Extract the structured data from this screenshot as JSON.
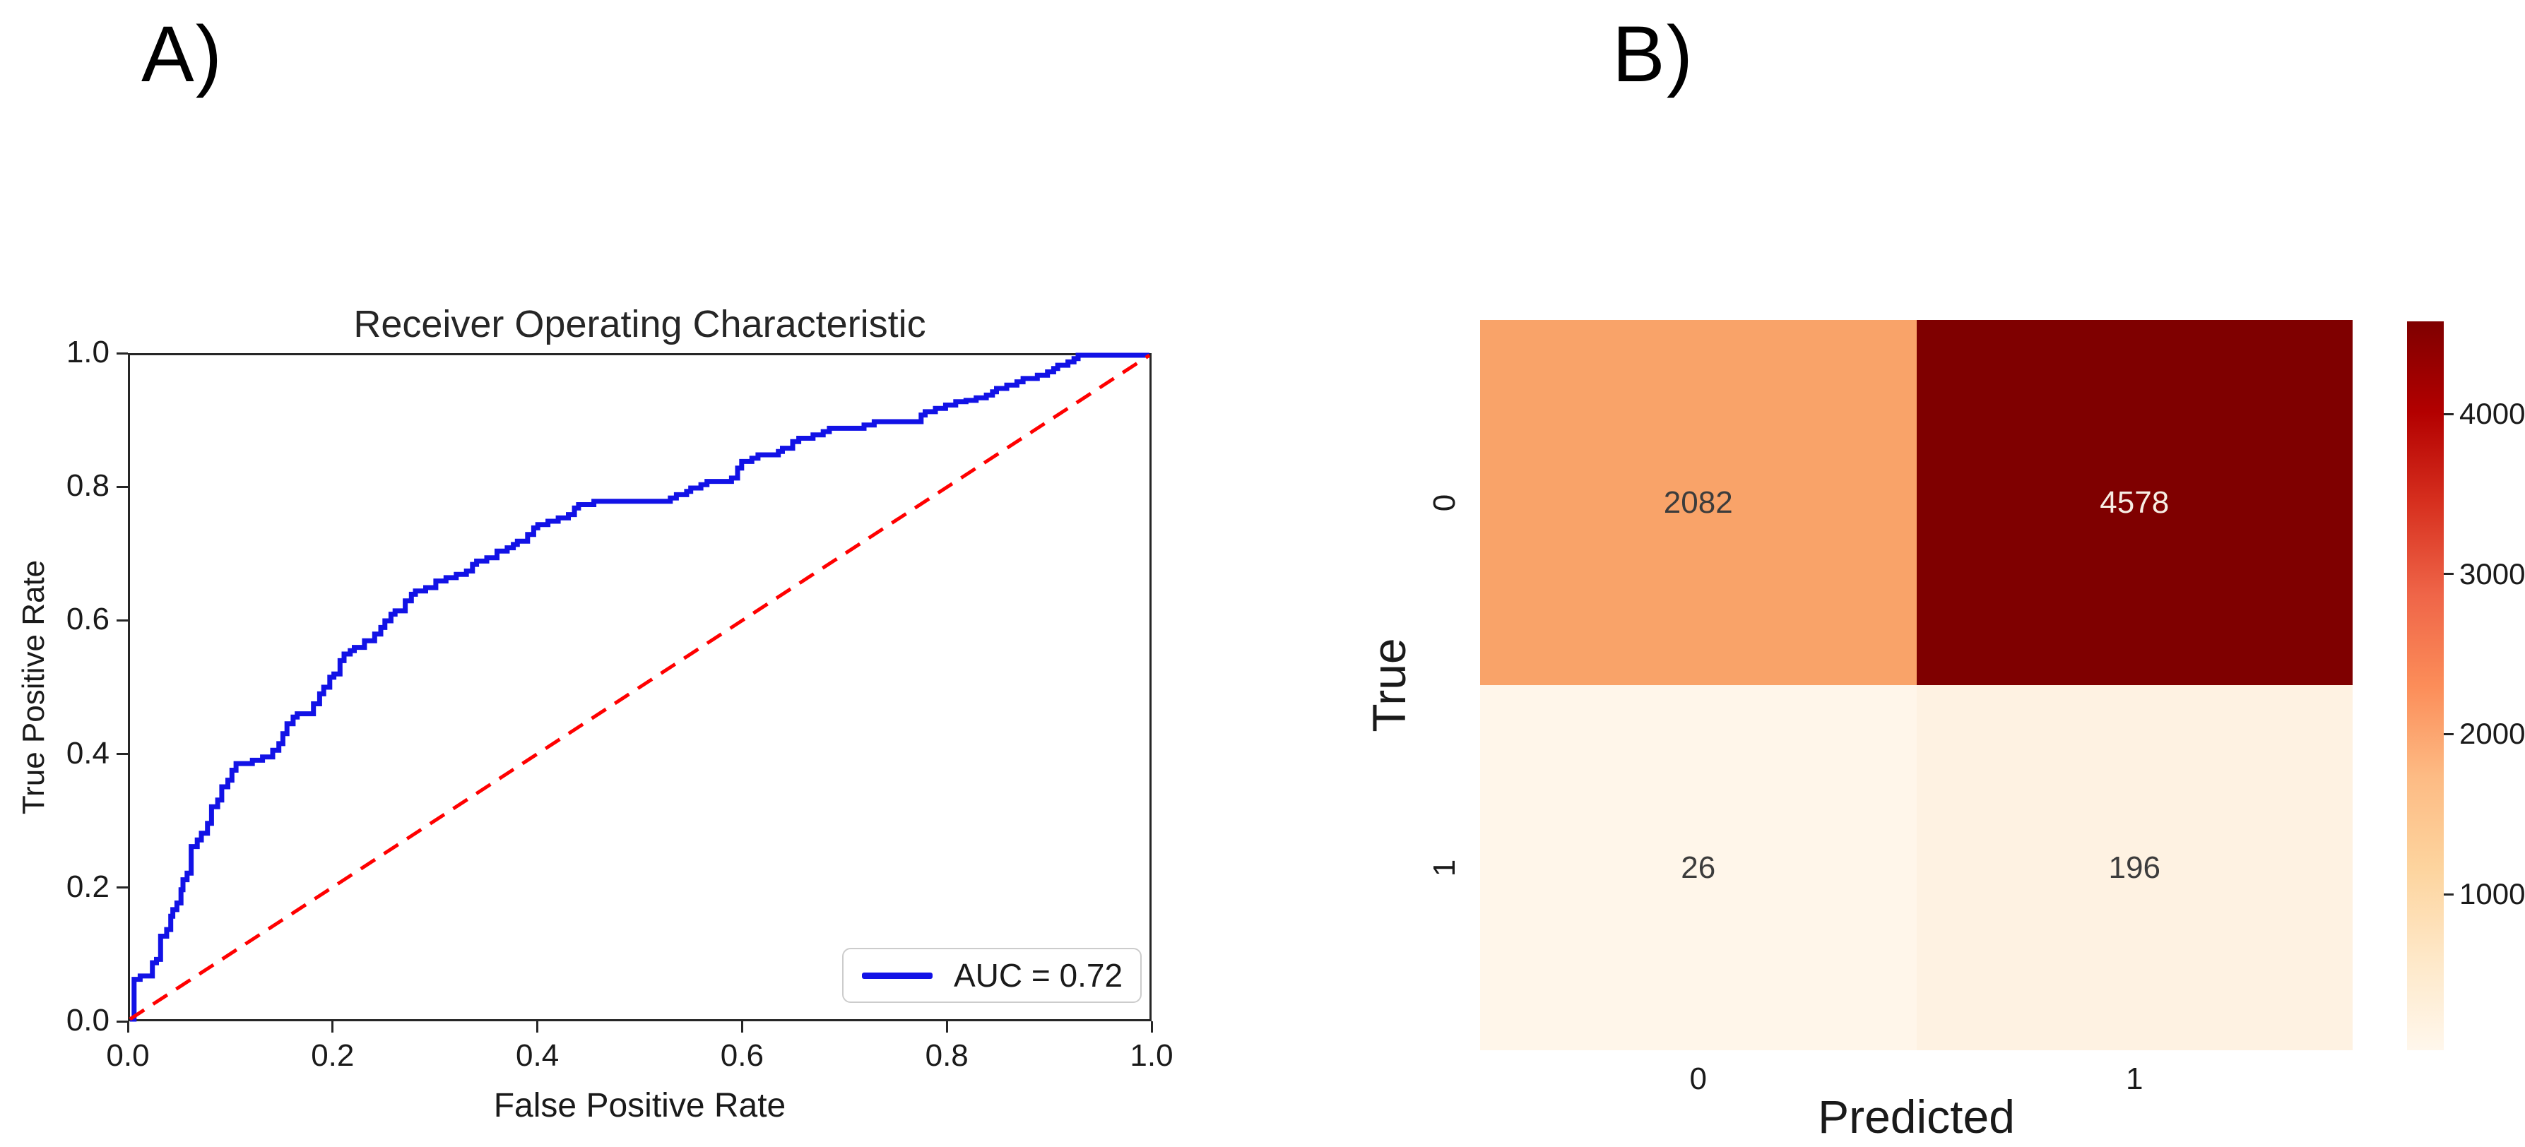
{
  "panels": {
    "a_label": "A)",
    "b_label": "B)"
  },
  "chart_data": [
    {
      "id": "roc_curve",
      "type": "line",
      "title": "Receiver Operating Characteristic",
      "xlabel": "False Positive Rate",
      "ylabel": "True Positive Rate",
      "xlim": [
        0.0,
        1.0
      ],
      "ylim": [
        0.0,
        1.0
      ],
      "xticks": [
        "0.0",
        "0.2",
        "0.4",
        "0.6",
        "0.8",
        "1.0"
      ],
      "yticks": [
        "0.0",
        "0.2",
        "0.4",
        "0.6",
        "0.8",
        "1.0"
      ],
      "grid": false,
      "auc": 0.72,
      "legend": {
        "position": "lower right",
        "label": "AUC = 0.72"
      },
      "series": [
        {
          "name": "ROC curve",
          "color": "#1212e6",
          "line_style": "solid",
          "draw": "steps",
          "points": [
            [
              0,
              0
            ],
            [
              0.004,
              0.04
            ],
            [
              0.004,
              0.06
            ],
            [
              0.01,
              0.065
            ],
            [
              0.02,
              0.065
            ],
            [
              0.022,
              0.085
            ],
            [
              0.026,
              0.09
            ],
            [
              0.03,
              0.1
            ],
            [
              0.03,
              0.125
            ],
            [
              0.036,
              0.135
            ],
            [
              0.04,
              0.155
            ],
            [
              0.042,
              0.165
            ],
            [
              0.046,
              0.175
            ],
            [
              0.05,
              0.195
            ],
            [
              0.052,
              0.21
            ],
            [
              0.056,
              0.22
            ],
            [
              0.06,
              0.235
            ],
            [
              0.06,
              0.26
            ],
            [
              0.066,
              0.27
            ],
            [
              0.07,
              0.28
            ],
            [
              0.076,
              0.295
            ],
            [
              0.08,
              0.3
            ],
            [
              0.08,
              0.32
            ],
            [
              0.086,
              0.33
            ],
            [
              0.09,
              0.35
            ],
            [
              0.096,
              0.36
            ],
            [
              0.1,
              0.375
            ],
            [
              0.104,
              0.385
            ],
            [
              0.12,
              0.39
            ],
            [
              0.13,
              0.395
            ],
            [
              0.14,
              0.405
            ],
            [
              0.146,
              0.415
            ],
            [
              0.15,
              0.43
            ],
            [
              0.154,
              0.445
            ],
            [
              0.16,
              0.455
            ],
            [
              0.164,
              0.46
            ],
            [
              0.175,
              0.46
            ],
            [
              0.18,
              0.475
            ],
            [
              0.186,
              0.49
            ],
            [
              0.19,
              0.5
            ],
            [
              0.196,
              0.515
            ],
            [
              0.2,
              0.52
            ],
            [
              0.206,
              0.54
            ],
            [
              0.21,
              0.55
            ],
            [
              0.216,
              0.555
            ],
            [
              0.22,
              0.56
            ],
            [
              0.23,
              0.57
            ],
            [
              0.24,
              0.58
            ],
            [
              0.246,
              0.59
            ],
            [
              0.25,
              0.6
            ],
            [
              0.256,
              0.61
            ],
            [
              0.26,
              0.615
            ],
            [
              0.27,
              0.63
            ],
            [
              0.276,
              0.64
            ],
            [
              0.28,
              0.645
            ],
            [
              0.29,
              0.65
            ],
            [
              0.3,
              0.66
            ],
            [
              0.31,
              0.665
            ],
            [
              0.32,
              0.67
            ],
            [
              0.33,
              0.675
            ],
            [
              0.336,
              0.685
            ],
            [
              0.34,
              0.69
            ],
            [
              0.35,
              0.695
            ],
            [
              0.36,
              0.705
            ],
            [
              0.37,
              0.71
            ],
            [
              0.376,
              0.715
            ],
            [
              0.38,
              0.72
            ],
            [
              0.39,
              0.73
            ],
            [
              0.396,
              0.74
            ],
            [
              0.4,
              0.745
            ],
            [
              0.41,
              0.75
            ],
            [
              0.42,
              0.755
            ],
            [
              0.43,
              0.76
            ],
            [
              0.436,
              0.77
            ],
            [
              0.44,
              0.775
            ],
            [
              0.455,
              0.78
            ],
            [
              0.52,
              0.78
            ],
            [
              0.53,
              0.785
            ],
            [
              0.536,
              0.79
            ],
            [
              0.546,
              0.795
            ],
            [
              0.55,
              0.8
            ],
            [
              0.56,
              0.805
            ],
            [
              0.566,
              0.81
            ],
            [
              0.586,
              0.81
            ],
            [
              0.59,
              0.815
            ],
            [
              0.596,
              0.83
            ],
            [
              0.6,
              0.84
            ],
            [
              0.61,
              0.845
            ],
            [
              0.616,
              0.85
            ],
            [
              0.63,
              0.85
            ],
            [
              0.636,
              0.855
            ],
            [
              0.64,
              0.86
            ],
            [
              0.65,
              0.87
            ],
            [
              0.656,
              0.875
            ],
            [
              0.666,
              0.875
            ],
            [
              0.67,
              0.88
            ],
            [
              0.68,
              0.885
            ],
            [
              0.686,
              0.89
            ],
            [
              0.72,
              0.895
            ],
            [
              0.73,
              0.9
            ],
            [
              0.77,
              0.9
            ],
            [
              0.776,
              0.91
            ],
            [
              0.78,
              0.915
            ],
            [
              0.79,
              0.92
            ],
            [
              0.8,
              0.925
            ],
            [
              0.81,
              0.93
            ],
            [
              0.82,
              0.932
            ],
            [
              0.83,
              0.936
            ],
            [
              0.84,
              0.94
            ],
            [
              0.846,
              0.945
            ],
            [
              0.85,
              0.95
            ],
            [
              0.86,
              0.955
            ],
            [
              0.87,
              0.96
            ],
            [
              0.876,
              0.965
            ],
            [
              0.886,
              0.965
            ],
            [
              0.89,
              0.97
            ],
            [
              0.9,
              0.975
            ],
            [
              0.906,
              0.98
            ],
            [
              0.91,
              0.985
            ],
            [
              0.92,
              0.99
            ],
            [
              0.926,
              0.995
            ],
            [
              0.93,
              1.0
            ],
            [
              1.0,
              1.0
            ]
          ]
        },
        {
          "name": "Chance diagonal",
          "color": "#ff0000",
          "line_style": "dashed",
          "draw": "line",
          "points": [
            [
              0,
              0
            ],
            [
              1,
              1
            ]
          ]
        }
      ]
    },
    {
      "id": "confusion_matrix",
      "type": "heatmap",
      "xlabel": "Predicted",
      "ylabel": "True",
      "x_categories": [
        "0",
        "1"
      ],
      "y_categories": [
        "0",
        "1"
      ],
      "values": [
        [
          2082,
          4578
        ],
        [
          26,
          196
        ]
      ],
      "cell_colors": [
        [
          "#f9a369",
          "#7f0000"
        ],
        [
          "#fff6ea",
          "#fef2e2"
        ]
      ],
      "cell_text_colors": [
        [
          "#3c3c3c",
          "#f7ede4"
        ],
        [
          "#3c3c3c",
          "#3c3c3c"
        ]
      ],
      "colormap": "OrRd",
      "colorbar": {
        "vmin": 26,
        "vmax": 4578,
        "ticks": [
          1000,
          2000,
          3000,
          4000
        ],
        "gradient_stops": [
          "#fff7ec",
          "#fee8c8",
          "#fdd49e",
          "#fdbb84",
          "#fc8d59",
          "#ef6548",
          "#d7301f",
          "#b30000",
          "#7f0000"
        ]
      }
    }
  ]
}
